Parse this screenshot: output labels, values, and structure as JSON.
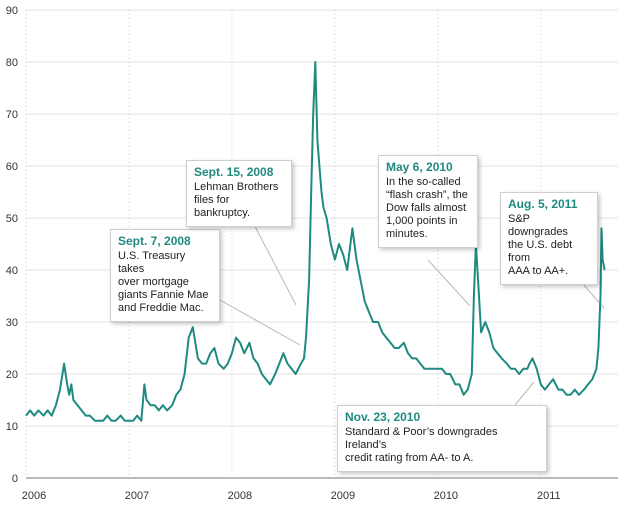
{
  "chart_data": {
    "type": "line",
    "title": "",
    "xlabel": "",
    "ylabel": "",
    "ylim": [
      0,
      90
    ],
    "yticks": [
      0,
      10,
      20,
      30,
      40,
      50,
      60,
      70,
      80,
      90
    ],
    "xlim": [
      2006,
      2011.75
    ],
    "xticks": [
      "2006",
      "2007",
      "2008",
      "2009",
      "2010",
      "2011"
    ],
    "grid": true,
    "line_color": "#1f8a80",
    "series": [
      {
        "x": [
          2006.0,
          2006.04,
          2006.08,
          2006.12,
          2006.17,
          2006.21,
          2006.25,
          2006.29,
          2006.33,
          2006.37,
          2006.4,
          2006.42,
          2006.44,
          2006.46,
          2006.5,
          2006.54,
          2006.58,
          2006.62,
          2006.67,
          2006.71,
          2006.75,
          2006.79,
          2006.83,
          2006.87,
          2006.92,
          2006.96,
          2007.0,
          2007.04,
          2007.08,
          2007.12,
          2007.15,
          2007.17,
          2007.21,
          2007.25,
          2007.29,
          2007.33,
          2007.37,
          2007.42,
          2007.46,
          2007.5,
          2007.54,
          2007.58,
          2007.62,
          2007.67,
          2007.71,
          2007.75,
          2007.79,
          2007.83,
          2007.87,
          2007.92,
          2007.96,
          2008.0,
          2008.04,
          2008.08,
          2008.12,
          2008.17,
          2008.21,
          2008.25,
          2008.29,
          2008.33,
          2008.37,
          2008.42,
          2008.46,
          2008.5,
          2008.54,
          2008.58,
          2008.62,
          2008.67,
          2008.7,
          2008.72,
          2008.75,
          2008.77,
          2008.79,
          2008.81,
          2008.83,
          2008.85,
          2008.87,
          2008.89,
          2008.92,
          2008.96,
          2009.0,
          2009.04,
          2009.08,
          2009.12,
          2009.17,
          2009.21,
          2009.25,
          2009.29,
          2009.33,
          2009.37,
          2009.42,
          2009.46,
          2009.5,
          2009.54,
          2009.58,
          2009.62,
          2009.67,
          2009.71,
          2009.75,
          2009.79,
          2009.83,
          2009.87,
          2009.92,
          2009.96,
          2010.0,
          2010.04,
          2010.08,
          2010.12,
          2010.17,
          2010.21,
          2010.25,
          2010.29,
          2010.33,
          2010.35,
          2010.37,
          2010.4,
          2010.42,
          2010.46,
          2010.5,
          2010.54,
          2010.58,
          2010.62,
          2010.67,
          2010.71,
          2010.75,
          2010.79,
          2010.83,
          2010.87,
          2010.89,
          2010.92,
          2010.96,
          2011.0,
          2011.04,
          2011.08,
          2011.12,
          2011.17,
          2011.21,
          2011.25,
          2011.29,
          2011.33,
          2011.37,
          2011.42,
          2011.46,
          2011.5,
          2011.54,
          2011.56,
          2011.58,
          2011.59,
          2011.6,
          2011.62
        ],
        "y": [
          12,
          13,
          12,
          13,
          12,
          13,
          12,
          14,
          17,
          22,
          18,
          16,
          18,
          15,
          14,
          13,
          12,
          12,
          11,
          11,
          11,
          12,
          11,
          11,
          12,
          11,
          11,
          11,
          12,
          11,
          18,
          15,
          14,
          14,
          13,
          14,
          13,
          14,
          16,
          17,
          20,
          27,
          29,
          23,
          22,
          22,
          24,
          25,
          22,
          21,
          22,
          24,
          27,
          26,
          24,
          26,
          23,
          22,
          20,
          19,
          18,
          20,
          22,
          24,
          22,
          21,
          20,
          22,
          23,
          27,
          38,
          55,
          70,
          80,
          65,
          60,
          55,
          52,
          50,
          45,
          42,
          45,
          43,
          40,
          48,
          42,
          38,
          34,
          32,
          30,
          30,
          28,
          27,
          26,
          25,
          25,
          26,
          24,
          23,
          23,
          22,
          21,
          21,
          21,
          21,
          21,
          20,
          20,
          18,
          18,
          16,
          17,
          20,
          35,
          45,
          35,
          28,
          30,
          28,
          25,
          24,
          23,
          22,
          21,
          21,
          20,
          21,
          21,
          22,
          23,
          21,
          18,
          17,
          18,
          19,
          17,
          17,
          16,
          16,
          17,
          16,
          17,
          18,
          19,
          21,
          25,
          35,
          48,
          42,
          40
        ]
      }
    ],
    "annotations": [
      {
        "date": "Sept. 7, 2008",
        "text": "U.S. Treasury takes\nover mortgage\ngiants Fannie Mae\nand Freddie Mac."
      },
      {
        "date": "Sept. 15, 2008",
        "text": "Lehman Brothers\nfiles for bankruptcy."
      },
      {
        "date": "May 6, 2010",
        "text": "In the so-called\n“flash crash”, the\nDow falls almost\n1,000 points in\nminutes."
      },
      {
        "date": "Aug. 5, 2011",
        "text": "S&P downgrades\nthe U.S. debt from\nAAA to AA+."
      },
      {
        "date": "Nov. 23, 2010",
        "text": "Standard & Poor’s downgrades Ireland’s\ncredit rating from AA- to A."
      }
    ]
  }
}
